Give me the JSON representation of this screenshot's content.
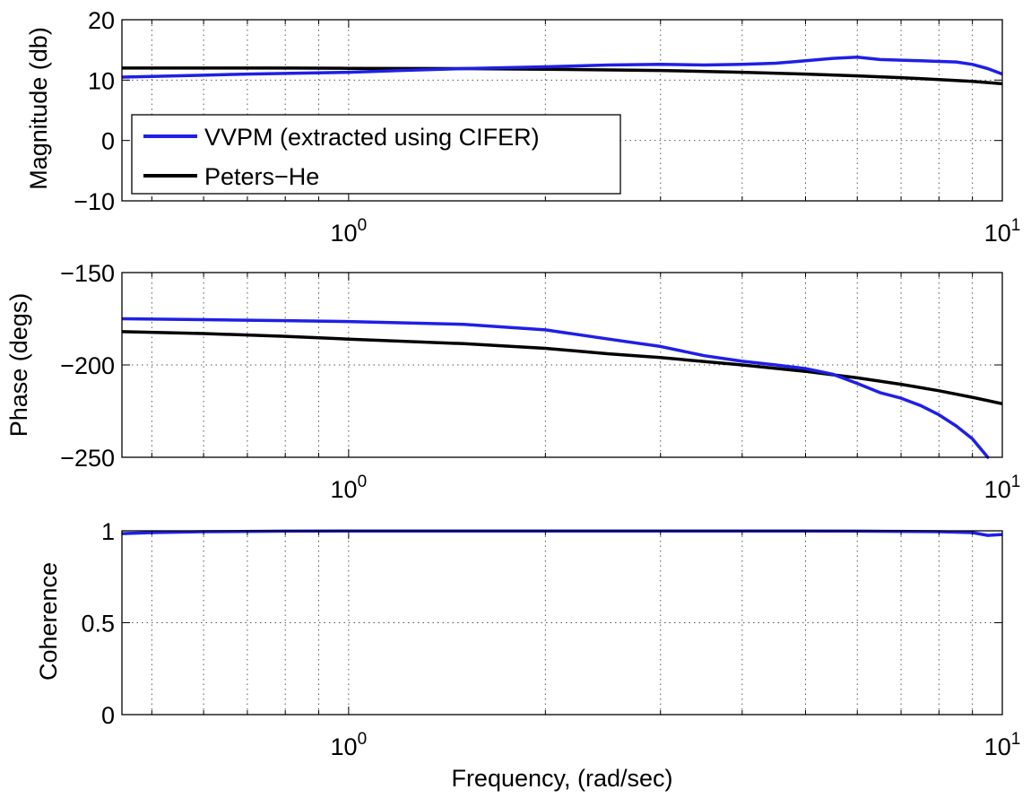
{
  "figure": {
    "xlabel": "Frequency, (rad/sec)",
    "colors": {
      "VVPM": "#1f1fe6",
      "PetersHe": "#000000"
    }
  },
  "chart_data": [
    {
      "type": "line",
      "xscale": "log",
      "xlim": [
        0.45,
        10
      ],
      "ylim": [
        -10,
        20
      ],
      "ylabel": "Magnitude (db)",
      "yticks": [
        -10,
        0,
        10,
        20
      ],
      "ytick_labels": [
        "−10",
        "0",
        "10",
        "20"
      ],
      "xtick_labels": [
        {
          "base": "10",
          "exp": "0"
        },
        {
          "base": "10",
          "exp": "1"
        }
      ],
      "grid": true,
      "legend": {
        "placement": "center-left",
        "entries": [
          "VVPM (extracted using CIFER)",
          "Peters−He"
        ]
      },
      "series": [
        {
          "name": "VVPM (extracted using CIFER)",
          "color": "#1f1fe6",
          "x": [
            0.45,
            0.5,
            0.6,
            0.7,
            0.8,
            1.0,
            1.2,
            1.5,
            2.0,
            2.5,
            3.0,
            3.5,
            4.0,
            4.5,
            5.0,
            5.5,
            6.0,
            6.5,
            7.0,
            7.5,
            8.0,
            8.5,
            9.0,
            9.5,
            10
          ],
          "y": [
            10.5,
            10.6,
            10.8,
            11.0,
            11.1,
            11.3,
            11.6,
            11.9,
            12.2,
            12.5,
            12.6,
            12.5,
            12.6,
            12.8,
            13.2,
            13.6,
            13.8,
            13.4,
            13.3,
            13.2,
            13.1,
            13.0,
            12.6,
            11.9,
            11.0
          ]
        },
        {
          "name": "Peters−He",
          "color": "#000000",
          "x": [
            0.45,
            0.6,
            0.8,
            1.0,
            1.5,
            2.0,
            3.0,
            4.0,
            5.0,
            6.0,
            7.0,
            8.0,
            9.0,
            10
          ],
          "y": [
            12.0,
            12.0,
            12.0,
            11.95,
            11.9,
            11.8,
            11.6,
            11.3,
            11.0,
            10.7,
            10.4,
            10.1,
            9.8,
            9.4
          ]
        }
      ]
    },
    {
      "type": "line",
      "xscale": "log",
      "xlim": [
        0.45,
        10
      ],
      "ylim": [
        -250,
        -150
      ],
      "ylabel": "Phase (degs)",
      "yticks": [
        -250,
        -200,
        -150
      ],
      "ytick_labels": [
        "−250",
        "−200",
        "−150"
      ],
      "xtick_labels": [
        {
          "base": "10",
          "exp": "0"
        },
        {
          "base": "10",
          "exp": "1"
        }
      ],
      "grid": true,
      "series": [
        {
          "name": "VVPM (extracted using CIFER)",
          "color": "#1f1fe6",
          "x": [
            0.45,
            0.6,
            0.8,
            1.0,
            1.5,
            2.0,
            2.5,
            3.0,
            3.5,
            4.0,
            4.5,
            5.0,
            5.5,
            6.0,
            6.5,
            7.0,
            7.5,
            8.0,
            8.5,
            9.0,
            9.5
          ],
          "y": [
            -175,
            -175.5,
            -176,
            -176.5,
            -178,
            -181,
            -186,
            -190,
            -195,
            -198,
            -200,
            -202,
            -205,
            -210,
            -215,
            -218,
            -222,
            -227,
            -233,
            -240,
            -250
          ]
        },
        {
          "name": "Peters−He",
          "color": "#000000",
          "x": [
            0.45,
            0.6,
            0.8,
            1.0,
            1.5,
            2.0,
            2.5,
            3.0,
            4.0,
            5.0,
            6.0,
            7.0,
            8.0,
            9.0,
            10
          ],
          "y": [
            -182,
            -183,
            -184.5,
            -186,
            -188.5,
            -191,
            -194,
            -196,
            -200,
            -203.5,
            -207,
            -210.5,
            -214,
            -217.5,
            -221
          ]
        }
      ]
    },
    {
      "type": "line",
      "xscale": "log",
      "xlim": [
        0.45,
        10
      ],
      "ylim": [
        0,
        1
      ],
      "ylabel": "Coherence",
      "xlabel": "Frequency, (rad/sec)",
      "yticks": [
        0,
        0.5,
        1
      ],
      "ytick_labels": [
        "0",
        "0.5",
        "1"
      ],
      "xtick_labels": [
        {
          "base": "10",
          "exp": "0"
        },
        {
          "base": "10",
          "exp": "1"
        }
      ],
      "grid": true,
      "series": [
        {
          "name": "VVPM (extracted using CIFER)",
          "color": "#1f1fe6",
          "x": [
            0.45,
            0.5,
            0.6,
            0.8,
            1.0,
            2.0,
            4.0,
            6.0,
            8.0,
            9.0,
            9.5,
            10
          ],
          "y": [
            0.985,
            0.99,
            0.995,
            0.998,
            0.999,
            0.999,
            0.999,
            0.998,
            0.995,
            0.99,
            0.975,
            0.98
          ]
        }
      ]
    }
  ]
}
